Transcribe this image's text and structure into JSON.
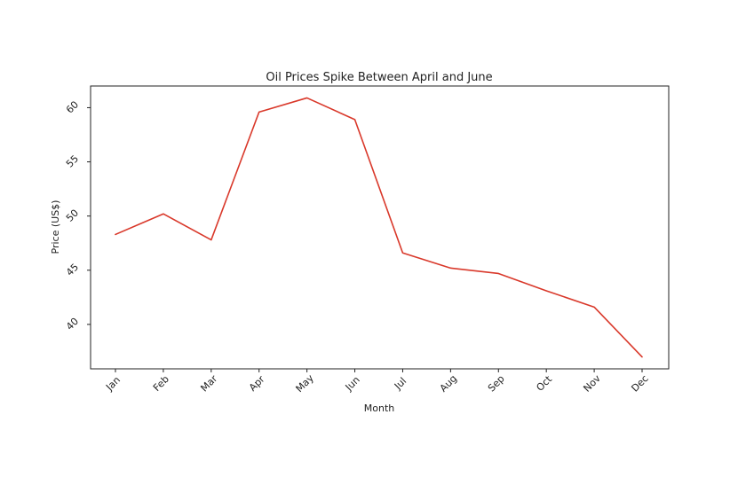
{
  "chart_data": {
    "type": "line",
    "title": "Oil Prices Spike Between April and June",
    "xlabel": "Month",
    "ylabel": "Price (US$)",
    "categories": [
      "Jan",
      "Feb",
      "Mar",
      "Apr",
      "May",
      "Jun",
      "Jul",
      "Aug",
      "Sep",
      "Oct",
      "Nov",
      "Dec"
    ],
    "series": [
      {
        "values": [
          48.3,
          50.2,
          47.8,
          59.6,
          60.9,
          58.9,
          46.6,
          45.2,
          44.7,
          43.1,
          41.6,
          37.0
        ],
        "color": "#d9382a"
      }
    ],
    "ylim": [
      35.9,
      62.0
    ],
    "yticks": [
      40,
      45,
      50,
      55,
      60
    ],
    "grid": false,
    "legend": "none"
  }
}
